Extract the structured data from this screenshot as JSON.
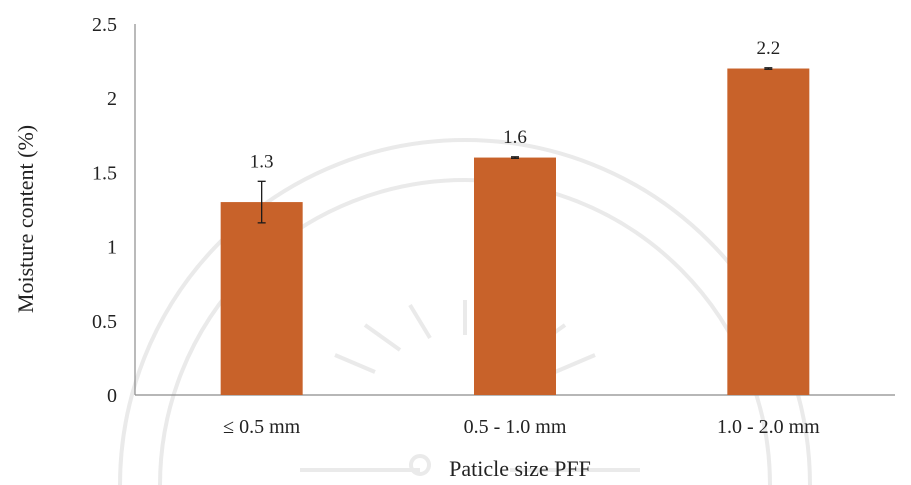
{
  "chart_data": {
    "type": "bar",
    "title": "",
    "xlabel": "Paticle size PFF",
    "ylabel": "Moisture content (%)",
    "categories": [
      "≤ 0.5 mm",
      "0.5 - 1.0 mm",
      "1.0 - 2.0 mm"
    ],
    "values": [
      1.3,
      1.6,
      2.2
    ],
    "value_labels": [
      "1.3",
      "1.6",
      "2.2"
    ],
    "error": [
      0.14,
      0.005,
      0.005
    ],
    "ylim": [
      0,
      2.5
    ],
    "yticks": [
      "0",
      "0.5",
      "1",
      "1.5",
      "2",
      "2.5"
    ],
    "grid": false,
    "legend": "none",
    "bar_color": "#c8622a",
    "bar_top_color": "#c45a1c"
  }
}
